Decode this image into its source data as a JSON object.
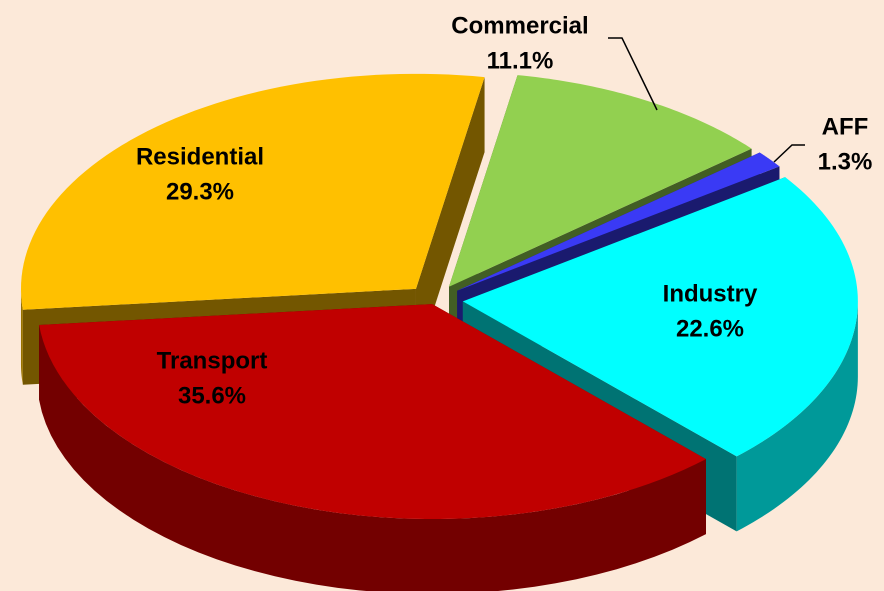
{
  "chart_data": {
    "type": "pie",
    "categories": [
      "Commercial",
      "AFF",
      "Industry",
      "Transport",
      "Residential"
    ],
    "values": [
      11.1,
      1.3,
      22.6,
      35.6,
      29.3
    ],
    "value_labels": [
      "11.1%",
      "1.3%",
      "22.6%",
      "35.6%",
      "29.3%"
    ],
    "colors": [
      "#92d050",
      "#3a3af5",
      "#00ffff",
      "#c00000",
      "#ffc000"
    ]
  }
}
